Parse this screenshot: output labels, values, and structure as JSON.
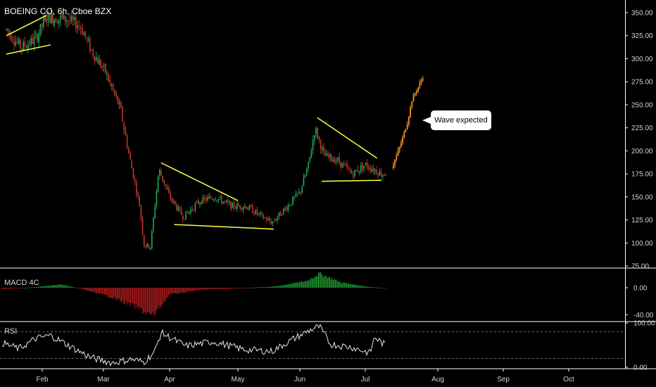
{
  "chart_data": {
    "type": "candlestick",
    "title": "BOEING CO, 6h, Cboe BZX",
    "x_tick_labels": [
      "Feb",
      "Mar",
      "Apr",
      "May",
      "Jun",
      "Jul",
      "Aug",
      "Sep",
      "Oct"
    ],
    "price_axis": {
      "ticks": [
        "350.00",
        "325.00",
        "300.00",
        "275.00",
        "250.00",
        "225.00",
        "200.00",
        "175.00",
        "150.00",
        "125.00",
        "100.00",
        "75.00"
      ],
      "ylim": [
        75,
        350
      ]
    },
    "price_path": [
      {
        "x": "Jan 15",
        "y": 332
      },
      {
        "x": "Jan 22",
        "y": 312
      },
      {
        "x": "Jan 29",
        "y": 322
      },
      {
        "x": "Feb 3",
        "y": 345
      },
      {
        "x": "Feb 12",
        "y": 343
      },
      {
        "x": "Feb 19",
        "y": 336
      },
      {
        "x": "Feb 24",
        "y": 310
      },
      {
        "x": "Mar 2",
        "y": 285
      },
      {
        "x": "Mar 9",
        "y": 245
      },
      {
        "x": "Mar 13",
        "y": 195
      },
      {
        "x": "Mar 18",
        "y": 140
      },
      {
        "x": "Mar 20",
        "y": 98
      },
      {
        "x": "Mar 23",
        "y": 96
      },
      {
        "x": "Mar 26",
        "y": 160
      },
      {
        "x": "Mar 27",
        "y": 180
      },
      {
        "x": "Apr 1",
        "y": 150
      },
      {
        "x": "Apr 7",
        "y": 128
      },
      {
        "x": "Apr 14",
        "y": 145
      },
      {
        "x": "Apr 21",
        "y": 150
      },
      {
        "x": "Apr 28",
        "y": 140
      },
      {
        "x": "May 5",
        "y": 140
      },
      {
        "x": "May 12",
        "y": 130
      },
      {
        "x": "May 18",
        "y": 122
      },
      {
        "x": "May 25",
        "y": 138
      },
      {
        "x": "Jun 1",
        "y": 155
      },
      {
        "x": "Jun 5",
        "y": 185
      },
      {
        "x": "Jun 8",
        "y": 225
      },
      {
        "x": "Jun 12",
        "y": 195
      },
      {
        "x": "Jun 18",
        "y": 190
      },
      {
        "x": "Jun 25",
        "y": 175
      },
      {
        "x": "Jul 1",
        "y": 185
      },
      {
        "x": "Jul 8",
        "y": 175
      },
      {
        "x": "Jul 10",
        "y": 176
      }
    ],
    "projection": {
      "name": "Wave expected",
      "points": [
        {
          "x": "Jul 13",
          "y": 185
        },
        {
          "x": "Jul 16",
          "y": 205
        },
        {
          "x": "Jul 19",
          "y": 230
        },
        {
          "x": "Jul 21",
          "y": 255
        },
        {
          "x": "Jul 24",
          "y": 270
        },
        {
          "x": "Jul 26",
          "y": 282
        }
      ]
    },
    "annotations": [
      {
        "type": "trendline",
        "color": "yellow",
        "from": {
          "x": "Jan 15",
          "y": 325
        },
        "to": {
          "x": "Feb 3",
          "y": 347
        }
      },
      {
        "type": "trendline",
        "color": "yellow",
        "from": {
          "x": "Jan 15",
          "y": 305
        },
        "to": {
          "x": "Feb 5",
          "y": 315
        }
      },
      {
        "type": "trendline",
        "color": "yellow",
        "from": {
          "x": "Mar 28",
          "y": 187
        },
        "to": {
          "x": "May 1",
          "y": 146
        }
      },
      {
        "type": "trendline",
        "color": "yellow",
        "from": {
          "x": "Apr 3",
          "y": 120
        },
        "to": {
          "x": "May 19",
          "y": 115
        }
      },
      {
        "type": "trendline",
        "color": "yellow",
        "from": {
          "x": "Jun 9",
          "y": 236
        },
        "to": {
          "x": "Jul 6",
          "y": 192
        }
      },
      {
        "type": "trendline",
        "color": "yellow",
        "from": {
          "x": "Jun 11",
          "y": 167
        },
        "to": {
          "x": "Jul 8",
          "y": 168
        }
      }
    ],
    "callout_text": "Wave expected",
    "indicators": [
      {
        "label": "MACD 4C",
        "ticks": [
          "0.00",
          "-40.00"
        ],
        "ylim": [
          -48,
          26
        ],
        "path": [
          {
            "x": "Jan 13",
            "y": -2
          },
          {
            "x": "Jan 29",
            "y": 1
          },
          {
            "x": "Feb 10",
            "y": 5
          },
          {
            "x": "Feb 20",
            "y": -2
          },
          {
            "x": "Mar 5",
            "y": -14
          },
          {
            "x": "Mar 16",
            "y": -28
          },
          {
            "x": "Mar 24",
            "y": -42
          },
          {
            "x": "Apr 1",
            "y": -10
          },
          {
            "x": "Apr 15",
            "y": -3
          },
          {
            "x": "May 1",
            "y": -1
          },
          {
            "x": "May 20",
            "y": 2
          },
          {
            "x": "Jun 4",
            "y": 10
          },
          {
            "x": "Jun 10",
            "y": 21
          },
          {
            "x": "Jun 20",
            "y": 8
          },
          {
            "x": "Jul 1",
            "y": 2
          },
          {
            "x": "Jul 10",
            "y": -1
          }
        ]
      },
      {
        "label": "RSI",
        "ticks": [
          "100.00",
          "0.00"
        ],
        "ylim": [
          0,
          100
        ],
        "bands": [
          80,
          20
        ],
        "path": [
          {
            "x": "Jan 13",
            "y": 55
          },
          {
            "x": "Jan 21",
            "y": 42
          },
          {
            "x": "Jan 29",
            "y": 65
          },
          {
            "x": "Feb 5",
            "y": 72
          },
          {
            "x": "Feb 15",
            "y": 45
          },
          {
            "x": "Feb 24",
            "y": 22
          },
          {
            "x": "Mar 5",
            "y": 10
          },
          {
            "x": "Mar 14",
            "y": 18
          },
          {
            "x": "Mar 20",
            "y": 12
          },
          {
            "x": "Mar 25",
            "y": 35
          },
          {
            "x": "Mar 28",
            "y": 78
          },
          {
            "x": "Apr 8",
            "y": 48
          },
          {
            "x": "Apr 20",
            "y": 58
          },
          {
            "x": "May 4",
            "y": 40
          },
          {
            "x": "May 18",
            "y": 36
          },
          {
            "x": "May 28",
            "y": 62
          },
          {
            "x": "Jun 6",
            "y": 85
          },
          {
            "x": "Jun 10",
            "y": 92
          },
          {
            "x": "Jun 15",
            "y": 52
          },
          {
            "x": "Jun 25",
            "y": 45
          },
          {
            "x": "Jul 3",
            "y": 32
          },
          {
            "x": "Jul 5",
            "y": 68
          },
          {
            "x": "Jul 10",
            "y": 48
          }
        ]
      }
    ],
    "colors": {
      "background": "#000000",
      "up": "#26a65b",
      "down": "#c0392b",
      "projection": "#f7931e",
      "trendline": "#ffff40",
      "macd_up": "#1e9e30",
      "macd_down": "#b71c1c",
      "rsi": "#e6e6e6",
      "axis_text": "#d1d4dc",
      "separator": "#ffffff"
    },
    "grid": false,
    "legend": "none"
  }
}
